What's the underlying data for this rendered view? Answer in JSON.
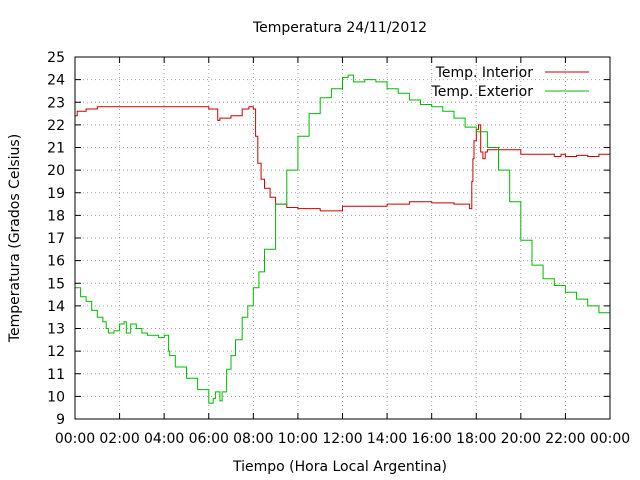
{
  "chart_data": {
    "type": "line",
    "title": "Temperatura 24/11/2012",
    "xlabel": "Tiempo (Hora Local Argentina)",
    "ylabel": "Temperatura (Grados Celsius)",
    "xlim": [
      0,
      24
    ],
    "ylim": [
      9,
      25
    ],
    "x_ticks": [
      {
        "value": 0,
        "label": "00:00"
      },
      {
        "value": 2,
        "label": "02:00"
      },
      {
        "value": 4,
        "label": "04:00"
      },
      {
        "value": 6,
        "label": "06:00"
      },
      {
        "value": 8,
        "label": "08:00"
      },
      {
        "value": 10,
        "label": "10:00"
      },
      {
        "value": 12,
        "label": "12:00"
      },
      {
        "value": 14,
        "label": "14:00"
      },
      {
        "value": 16,
        "label": "16:00"
      },
      {
        "value": 18,
        "label": "18:00"
      },
      {
        "value": 20,
        "label": "20:00"
      },
      {
        "value": 22,
        "label": "22:00"
      },
      {
        "value": 24,
        "label": "00:00"
      }
    ],
    "y_ticks": [
      9,
      10,
      11,
      12,
      13,
      14,
      15,
      16,
      17,
      18,
      19,
      20,
      21,
      22,
      23,
      24,
      25
    ],
    "grid": true,
    "legend_position": "top-right",
    "series": [
      {
        "name": "Temp. Interior",
        "color": "#cc0000",
        "x": [
          0.0,
          0.1,
          0.5,
          1.0,
          2.0,
          3.0,
          4.0,
          5.0,
          5.5,
          6.0,
          6.25,
          6.4,
          6.5,
          7.0,
          7.5,
          7.8,
          8.0,
          8.1,
          8.2,
          8.35,
          8.5,
          8.75,
          9.0,
          9.5,
          10.0,
          11.0,
          12.0,
          13.0,
          14.0,
          15.0,
          15.5,
          16.0,
          17.0,
          17.5,
          17.7,
          17.8,
          17.85,
          17.9,
          18.0,
          18.1,
          18.2,
          18.3,
          18.4,
          18.5,
          19.0,
          20.0,
          20.5,
          21.0,
          21.5,
          21.8,
          22.0,
          22.5,
          23.0,
          23.5,
          24.0
        ],
        "y": [
          22.4,
          22.6,
          22.7,
          22.8,
          22.8,
          22.8,
          22.8,
          22.8,
          22.8,
          22.7,
          22.7,
          22.2,
          22.3,
          22.4,
          22.7,
          22.8,
          22.7,
          21.5,
          20.3,
          19.6,
          19.2,
          18.8,
          18.5,
          18.35,
          18.3,
          18.2,
          18.4,
          18.4,
          18.5,
          18.6,
          18.6,
          18.55,
          18.5,
          18.5,
          18.3,
          19.5,
          20.5,
          21.3,
          21.8,
          22.0,
          20.8,
          20.5,
          20.8,
          20.9,
          20.9,
          20.7,
          20.7,
          20.7,
          20.6,
          20.7,
          20.6,
          20.65,
          20.6,
          20.7,
          20.7
        ]
      },
      {
        "name": "Temp. Exterior",
        "color": "#00bb00",
        "x": [
          0.0,
          0.25,
          0.5,
          0.75,
          1.0,
          1.25,
          1.4,
          1.5,
          1.75,
          2.0,
          2.2,
          2.3,
          2.5,
          2.75,
          3.0,
          3.25,
          3.5,
          3.75,
          4.0,
          4.2,
          4.25,
          4.5,
          5.0,
          5.5,
          6.0,
          6.2,
          6.3,
          6.5,
          6.6,
          6.8,
          7.0,
          7.2,
          7.5,
          7.75,
          8.0,
          8.25,
          8.5,
          9.0,
          9.5,
          10.0,
          10.5,
          11.0,
          11.5,
          12.0,
          12.25,
          12.5,
          13.0,
          13.5,
          14.0,
          14.5,
          15.0,
          15.5,
          16.0,
          16.5,
          17.0,
          17.5,
          18.0,
          18.5,
          19.0,
          19.5,
          20.0,
          20.5,
          21.0,
          21.5,
          22.0,
          22.5,
          23.0,
          23.5,
          24.0
        ],
        "y": [
          14.8,
          14.4,
          14.2,
          13.8,
          13.5,
          13.3,
          13.0,
          12.8,
          12.9,
          13.2,
          13.3,
          12.8,
          13.2,
          13.0,
          12.8,
          12.7,
          12.7,
          12.6,
          12.7,
          12.0,
          11.8,
          11.3,
          10.8,
          10.3,
          9.7,
          9.9,
          10.2,
          9.8,
          10.2,
          11.2,
          11.8,
          12.5,
          13.5,
          14.0,
          14.8,
          15.5,
          16.5,
          18.5,
          20.0,
          21.5,
          22.5,
          23.2,
          23.6,
          24.1,
          24.2,
          23.9,
          24.0,
          23.9,
          23.6,
          23.4,
          23.1,
          22.9,
          22.8,
          22.6,
          22.3,
          21.9,
          21.7,
          21.0,
          20.0,
          18.6,
          16.9,
          15.8,
          15.2,
          14.9,
          14.6,
          14.3,
          14.0,
          13.7,
          13.3
        ]
      }
    ]
  }
}
